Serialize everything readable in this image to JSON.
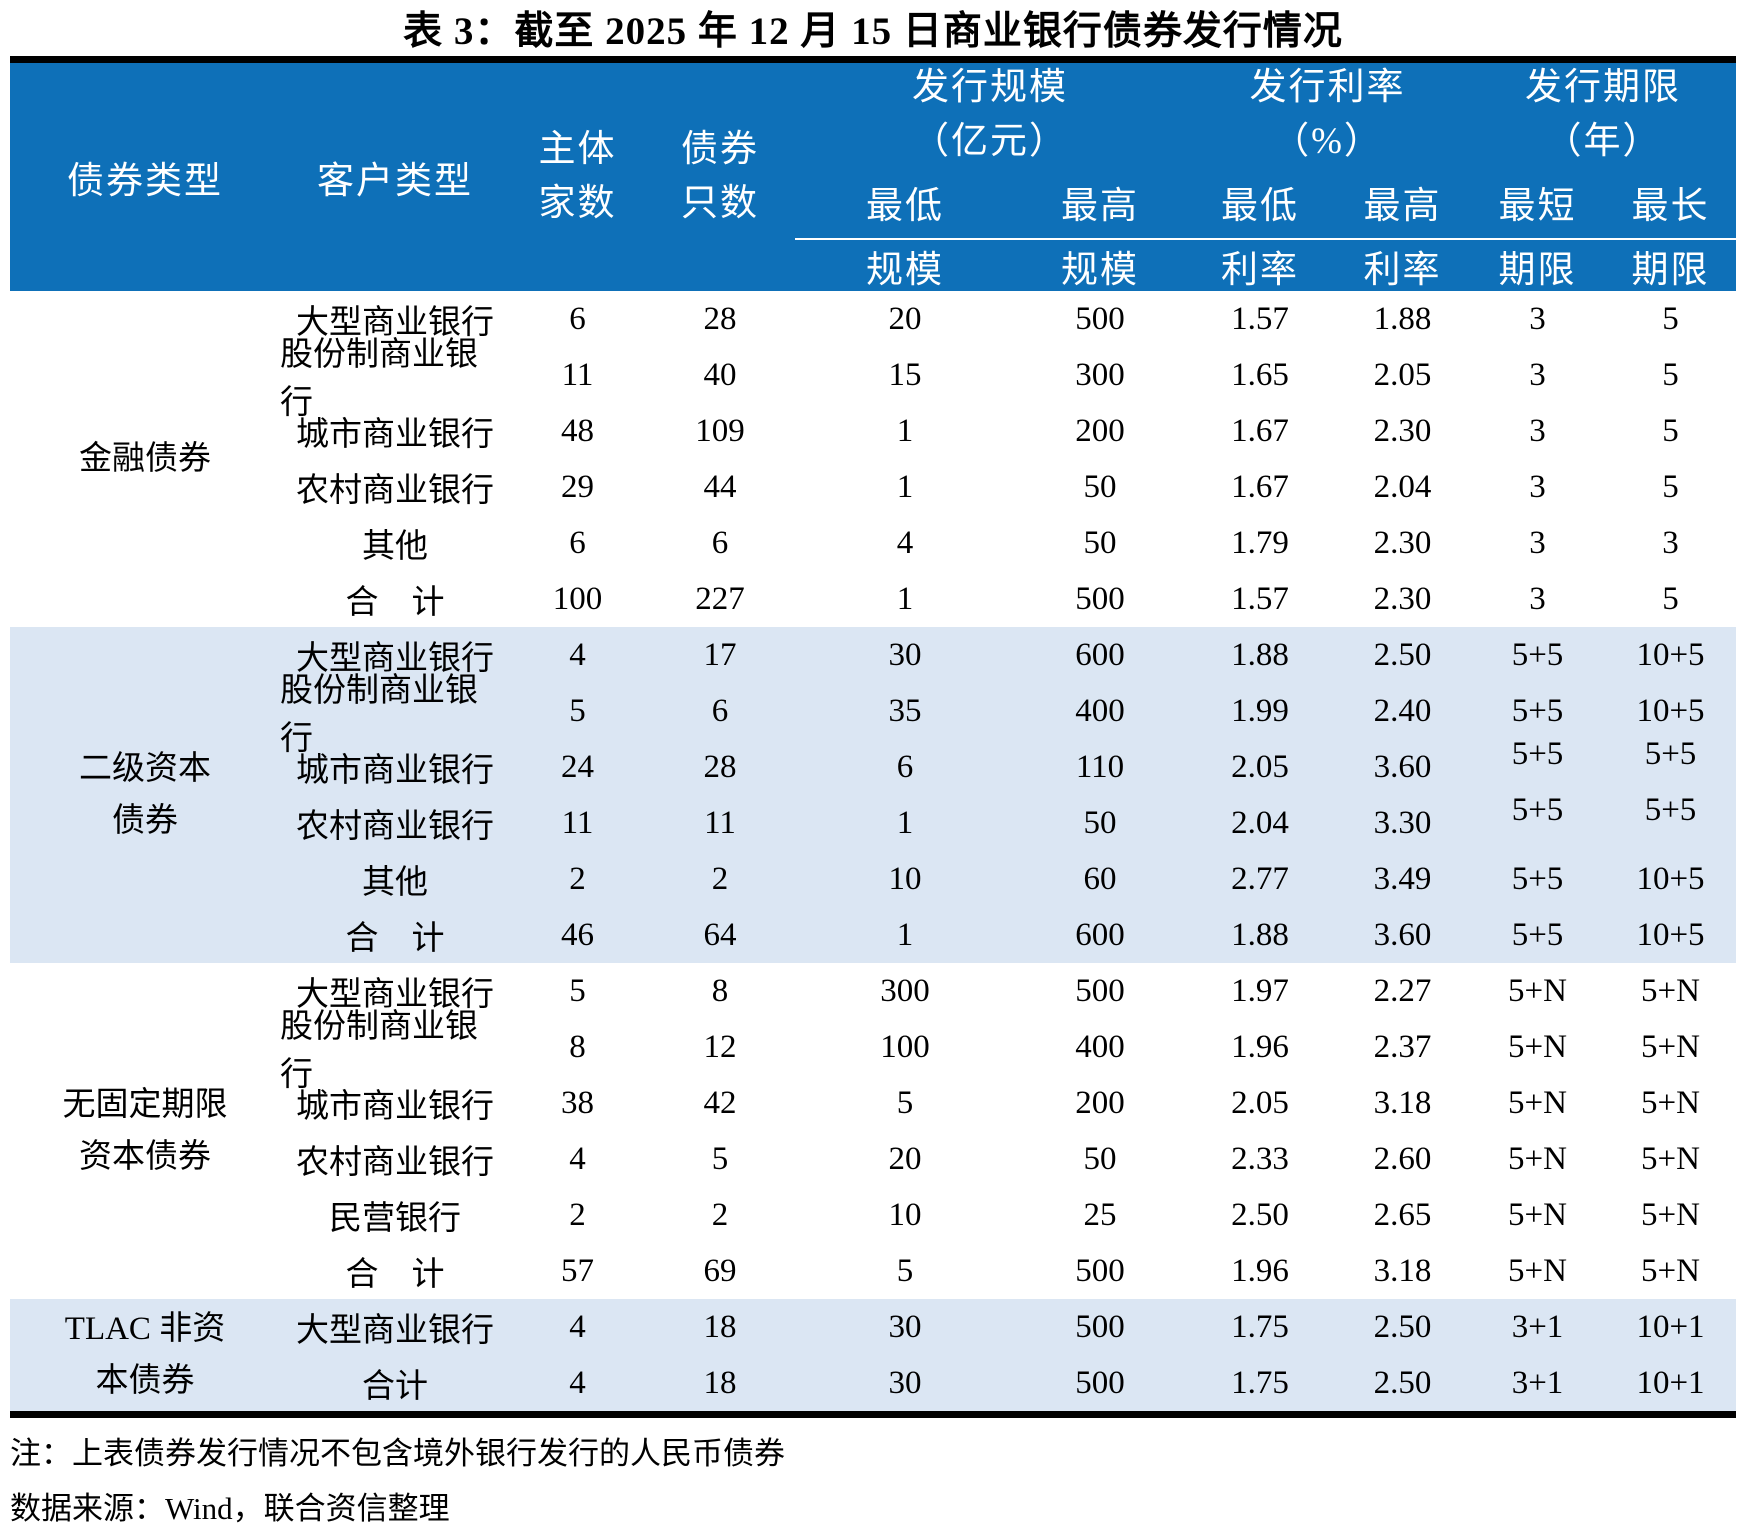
{
  "title": "表 3：截至 2025 年 12 月 15 日商业银行债券发行情况",
  "header": {
    "bond_type": "债券类型",
    "customer_type": "客户类型",
    "entity_count": [
      "主体",
      "家数"
    ],
    "bond_count": [
      "债券",
      "只数"
    ],
    "groups": [
      {
        "label": "发行规模",
        "unit": "（亿元）",
        "sub": [
          [
            "最低",
            "规模"
          ],
          [
            "最高",
            "规模"
          ]
        ]
      },
      {
        "label": "发行利率",
        "unit": "（%）",
        "sub": [
          [
            "最低",
            "利率"
          ],
          [
            "最高",
            "利率"
          ]
        ]
      },
      {
        "label": "发行期限",
        "unit": "（年）",
        "sub": [
          [
            "最短",
            "期限"
          ],
          [
            "最长",
            "期限"
          ]
        ]
      }
    ]
  },
  "sections": [
    {
      "type_label": [
        "金融债券"
      ],
      "shaded": false,
      "rows": [
        {
          "customer": "大型商业银行",
          "values": [
            "6",
            "28",
            "20",
            "500",
            "1.57",
            "1.88",
            "3",
            "5"
          ]
        },
        {
          "customer": "股份制商业银行",
          "values": [
            "11",
            "40",
            "15",
            "300",
            "1.65",
            "2.05",
            "3",
            "5"
          ]
        },
        {
          "customer": "城市商业银行",
          "values": [
            "48",
            "109",
            "1",
            "200",
            "1.67",
            "2.30",
            "3",
            "5"
          ]
        },
        {
          "customer": "农村商业银行",
          "values": [
            "29",
            "44",
            "1",
            "50",
            "1.67",
            "2.04",
            "3",
            "5"
          ]
        },
        {
          "customer": "其他",
          "values": [
            "6",
            "6",
            "4",
            "50",
            "1.79",
            "2.30",
            "3",
            "3"
          ]
        },
        {
          "customer": "合　计",
          "values": [
            "100",
            "227",
            "1",
            "500",
            "1.57",
            "2.30",
            "3",
            "5"
          ]
        }
      ]
    },
    {
      "type_label": [
        "二级资本",
        "债券"
      ],
      "shaded": true,
      "rows": [
        {
          "customer": "大型商业银行",
          "values": [
            "4",
            "17",
            "30",
            "600",
            "1.88",
            "2.50",
            "5+5",
            "10+5"
          ]
        },
        {
          "customer": "股份制商业银行",
          "values": [
            "5",
            "6",
            "35",
            "400",
            "1.99",
            "2.40",
            "5+5",
            "10+5"
          ]
        },
        {
          "customer": "城市商业银行",
          "values": [
            "24",
            "28",
            "6",
            "110",
            "2.05",
            "3.60",
            "5+5",
            "5+5"
          ],
          "raised_terms": true
        },
        {
          "customer": "农村商业银行",
          "values": [
            "11",
            "11",
            "1",
            "50",
            "2.04",
            "3.30",
            "5+5",
            "5+5"
          ],
          "raised_terms": true
        },
        {
          "customer": "其他",
          "values": [
            "2",
            "2",
            "10",
            "60",
            "2.77",
            "3.49",
            "5+5",
            "10+5"
          ]
        },
        {
          "customer": "合　计",
          "values": [
            "46",
            "64",
            "1",
            "600",
            "1.88",
            "3.60",
            "5+5",
            "10+5"
          ]
        }
      ]
    },
    {
      "type_label": [
        "无固定期限",
        "资本债券"
      ],
      "shaded": false,
      "rows": [
        {
          "customer": "大型商业银行",
          "values": [
            "5",
            "8",
            "300",
            "500",
            "1.97",
            "2.27",
            "5+N",
            "5+N"
          ]
        },
        {
          "customer": "股份制商业银行",
          "values": [
            "8",
            "12",
            "100",
            "400",
            "1.96",
            "2.37",
            "5+N",
            "5+N"
          ]
        },
        {
          "customer": "城市商业银行",
          "values": [
            "38",
            "42",
            "5",
            "200",
            "2.05",
            "3.18",
            "5+N",
            "5+N"
          ]
        },
        {
          "customer": "农村商业银行",
          "values": [
            "4",
            "5",
            "20",
            "50",
            "2.33",
            "2.60",
            "5+N",
            "5+N"
          ]
        },
        {
          "customer": "民营银行",
          "values": [
            "2",
            "2",
            "10",
            "25",
            "2.50",
            "2.65",
            "5+N",
            "5+N"
          ]
        },
        {
          "customer": "合　计",
          "values": [
            "57",
            "69",
            "5",
            "500",
            "1.96",
            "3.18",
            "5+N",
            "5+N"
          ]
        }
      ]
    },
    {
      "type_label": [
        "TLAC 非资",
        "本债券"
      ],
      "shaded": true,
      "rows": [
        {
          "customer": "大型商业银行",
          "values": [
            "4",
            "18",
            "30",
            "500",
            "1.75",
            "2.50",
            "3+1",
            "10+1"
          ]
        },
        {
          "customer": "合计",
          "values": [
            "4",
            "18",
            "30",
            "500",
            "1.75",
            "2.50",
            "3+1",
            "10+1"
          ]
        }
      ]
    }
  ],
  "notes": [
    "注：上表债券发行情况不包含境外银行发行的人民币债券",
    "数据来源：Wind，联合资信整理"
  ],
  "colors": {
    "header_bg": "#0e70b8",
    "header_text": "#ffffff",
    "shaded_band_bg": "#dbe6f3",
    "rule": "#000000"
  }
}
